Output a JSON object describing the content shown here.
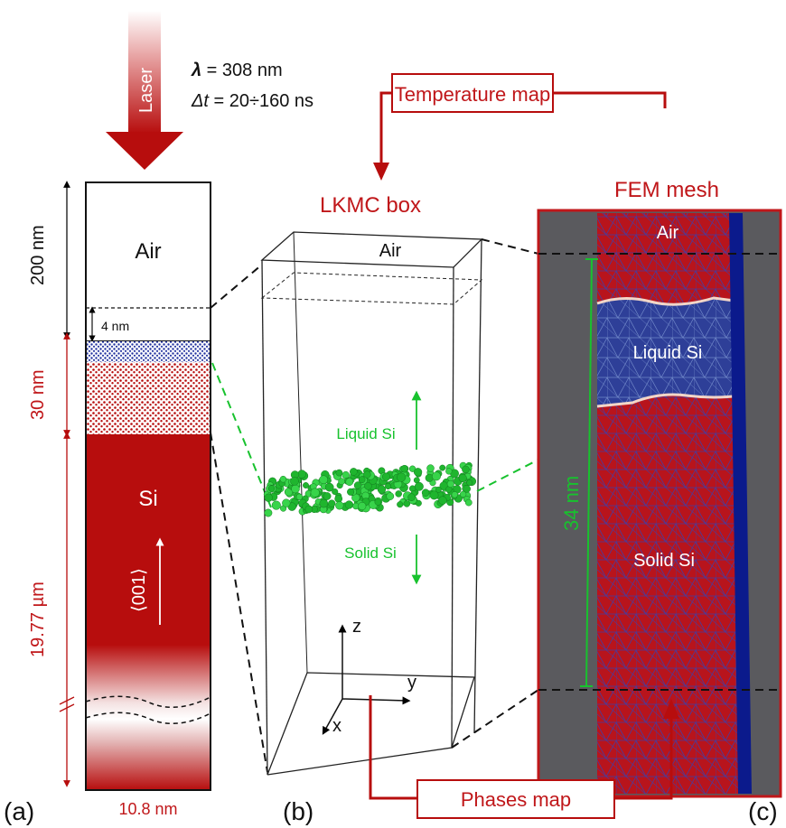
{
  "laser": {
    "label": "Laser",
    "lambda_symbol": "λ",
    "lambda_value": " = 308 nm",
    "dt_symbol": "Δt",
    "dt_value": " = 20÷160 ns"
  },
  "panel_a": {
    "air_label": "Air",
    "si_label": "Si",
    "orientation_label": "⟨001⟩",
    "dim_air": "200 nm",
    "dim_gap": "4 nm",
    "dim_layer": "30 nm",
    "dim_si": "19.77 µm",
    "width_label": "10.8 nm",
    "panel_label": "(a)"
  },
  "panel_b": {
    "title": "LKMC box",
    "air_label": "Air",
    "liquid_label": "Liquid Si",
    "solid_label": "Solid Si",
    "axis_z": "z",
    "axis_y": "y",
    "axis_x": "x",
    "panel_label": "(b)"
  },
  "panel_c": {
    "title": "FEM mesh",
    "air_label": "Air",
    "liquid_label": "Liquid Si",
    "solid_label": "Solid Si",
    "dim_label": "34 nm",
    "panel_label": "(c)"
  },
  "temperature_map_label": "Temperature map",
  "phases_map_label": "Phases map",
  "colors": {
    "dark_red": "#b70d0d",
    "label_red": "#c0171a",
    "green": "#18c22e",
    "mesh_blue": "#2e3f98",
    "mesh_red": "#b8141c",
    "mesh_grey": "#5a5a5e"
  }
}
